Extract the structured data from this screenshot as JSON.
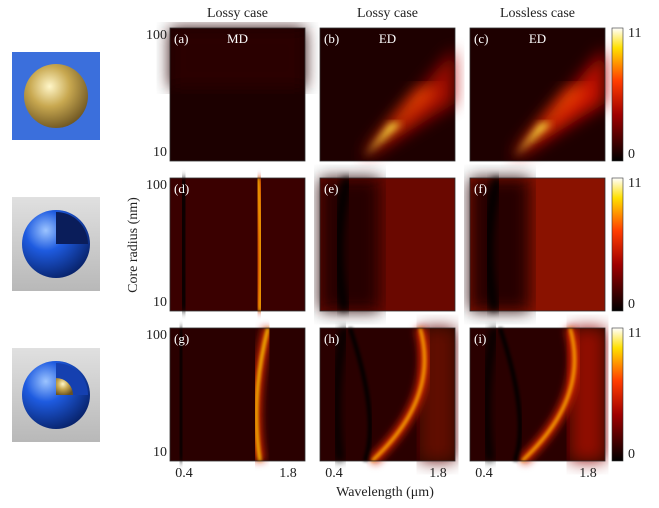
{
  "column_titles": [
    "Lossy case",
    "Lossy case",
    "Lossless case"
  ],
  "panels": [
    {
      "label": "(a)",
      "mode": "MD"
    },
    {
      "label": "(b)",
      "mode": "ED"
    },
    {
      "label": "(c)",
      "mode": "ED"
    },
    {
      "label": "(d)"
    },
    {
      "label": "(e)"
    },
    {
      "label": "(f)"
    },
    {
      "label": "(g)"
    },
    {
      "label": "(h)"
    },
    {
      "label": "(i)"
    }
  ],
  "y_axis": {
    "label": "Core radius (nm)",
    "ticks": [
      "100",
      "10"
    ]
  },
  "x_axis": {
    "label": "Wavelength (μm)",
    "ticks": [
      "0.4",
      "1.8"
    ]
  },
  "colorbar": {
    "ticks": [
      "11",
      "0"
    ]
  }
}
